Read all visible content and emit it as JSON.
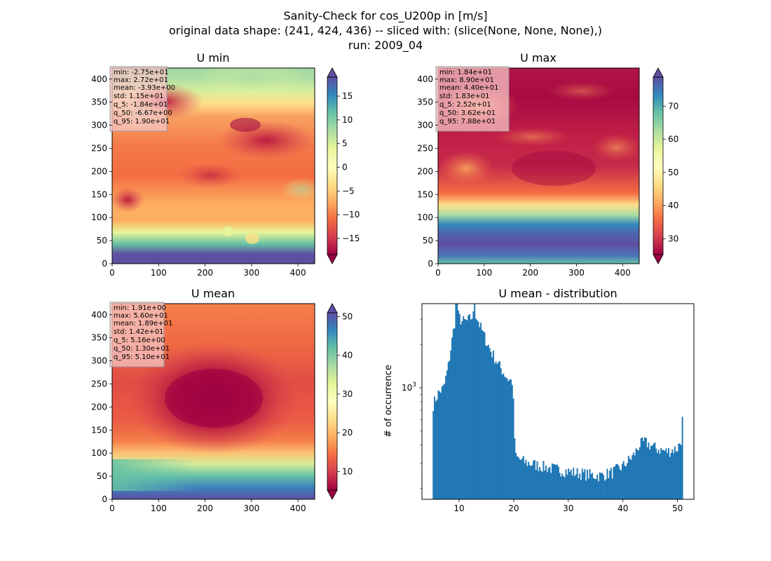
{
  "figure": {
    "title_lines": [
      "Sanity-Check for cos_U200p in [m/s]",
      "original data shape: (241, 424, 436) -- sliced with: (slice(None, None, None),)",
      "run: 2009_04"
    ]
  },
  "chart_data": [
    {
      "type": "heatmap",
      "title": "U min",
      "colormap": "Spectral",
      "xlim": [
        0,
        436
      ],
      "ylim": [
        0,
        424
      ],
      "x_ticks": [
        0,
        100,
        200,
        300,
        400
      ],
      "y_ticks": [
        0,
        50,
        100,
        150,
        200,
        250,
        300,
        350,
        400
      ],
      "colorbar": {
        "range": [
          -18.4,
          19.0
        ],
        "ticks": [
          -15,
          -10,
          -5,
          0,
          5,
          10,
          15
        ],
        "tick_labels": [
          "−15",
          "−10",
          "−5",
          "0",
          "5",
          "10",
          "15"
        ]
      },
      "stats": [
        "min: -2.75e+01",
        "max: 2.72e+01",
        "mean: -3.93e+00",
        "std: 1.15e+01",
        "q_5: -1.84e+01",
        "q_50: -6.67e+00",
        "q_95: 1.90e+01"
      ]
    },
    {
      "type": "heatmap",
      "title": "U max",
      "colormap": "Spectral",
      "xlim": [
        0,
        436
      ],
      "ylim": [
        0,
        424
      ],
      "x_ticks": [
        0,
        100,
        200,
        300,
        400
      ],
      "y_ticks": [
        0,
        50,
        100,
        150,
        200,
        250,
        300,
        350,
        400
      ],
      "colorbar": {
        "range": [
          25.2,
          78.8
        ],
        "ticks": [
          30,
          40,
          50,
          60,
          70
        ],
        "tick_labels": [
          "30",
          "40",
          "50",
          "60",
          "70"
        ]
      },
      "stats": [
        "min: 1.84e+01",
        "max: 8.90e+01",
        "mean: 4.40e+01",
        "std: 1.83e+01",
        "q_5: 2.52e+01",
        "q_50: 3.62e+01",
        "q_95: 7.88e+01"
      ]
    },
    {
      "type": "heatmap",
      "title": "U mean",
      "colormap": "Spectral",
      "xlim": [
        0,
        436
      ],
      "ylim": [
        0,
        424
      ],
      "x_ticks": [
        0,
        100,
        200,
        300,
        400
      ],
      "y_ticks": [
        0,
        50,
        100,
        150,
        200,
        250,
        300,
        350,
        400
      ],
      "colorbar": {
        "range": [
          5.16,
          51.0
        ],
        "ticks": [
          10,
          20,
          30,
          40,
          50
        ],
        "tick_labels": [
          "10",
          "20",
          "30",
          "40",
          "50"
        ]
      },
      "stats": [
        "min: 1.91e+00",
        "max: 5.60e+01",
        "mean: 1.89e+01",
        "std: 1.42e+01",
        "q_5: 5.16e+00",
        "q_50: 1.30e+01",
        "q_95: 5.10e+01"
      ]
    },
    {
      "type": "bar",
      "title": "U mean - distribution",
      "ylabel": "# of occurrence",
      "yscale": "log",
      "color": "#1f77b4",
      "xlim": [
        3.2,
        53.0
      ],
      "ylim_log10": [
        2.225,
        3.585
      ],
      "x_ticks": [
        10,
        20,
        30,
        40,
        50
      ],
      "y_ticks_labeled": [
        {
          "value": 1000,
          "label": "10^3"
        }
      ],
      "bins": {
        "start": 5.16,
        "end": 51.0,
        "count": 200
      },
      "density_profile": [
        [
          5.16,
          750
        ],
        [
          6.2,
          920
        ],
        [
          7.2,
          1000
        ],
        [
          8.0,
          1400
        ],
        [
          8.6,
          2000
        ],
        [
          9.2,
          2900
        ],
        [
          9.8,
          3200
        ],
        [
          10.5,
          2900
        ],
        [
          11.5,
          2900
        ],
        [
          12.3,
          3100
        ],
        [
          13.0,
          3300
        ],
        [
          14.0,
          2600
        ],
        [
          15.0,
          2100
        ],
        [
          16.0,
          1750
        ],
        [
          17.0,
          1500
        ],
        [
          18.0,
          1300
        ],
        [
          19.0,
          1150
        ],
        [
          19.8,
          1100
        ],
        [
          20.3,
          330
        ],
        [
          22.0,
          305
        ],
        [
          25.0,
          285
        ],
        [
          28.0,
          270
        ],
        [
          31.0,
          258
        ],
        [
          34.0,
          248
        ],
        [
          36.0,
          245
        ],
        [
          38.0,
          258
        ],
        [
          40.0,
          285
        ],
        [
          42.0,
          340
        ],
        [
          43.0,
          400
        ],
        [
          44.0,
          420
        ],
        [
          46.0,
          380
        ],
        [
          48.0,
          360
        ],
        [
          50.0,
          380
        ],
        [
          50.7,
          440
        ],
        [
          51.0,
          720
        ]
      ]
    }
  ]
}
